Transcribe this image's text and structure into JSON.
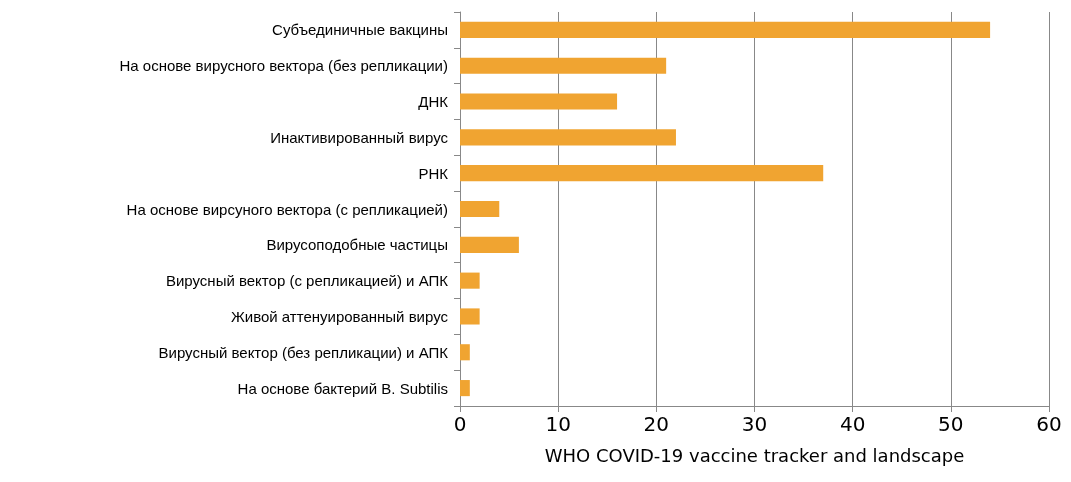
{
  "chart_data": {
    "type": "bar",
    "orientation": "horizontal",
    "xlabel": "WHO COVID-19 vaccine tracker and landscape",
    "categories": [
      "Субъединичные вакцины",
      "На основе вирусного вектора (без репликации)",
      "ДНК",
      "Инактивированный вирус",
      "РНК",
      "На основе вирсуного вектора (с репликацией)",
      "Вирусоподобные частицы",
      "Вирусный вектор (с репликацией) и АПК",
      "Живой аттенуированный вирус",
      "Вирусный вектор (без репликации) и АПК",
      "На основе бактерий B. Subtilis"
    ],
    "values": [
      54,
      21,
      16,
      22,
      37,
      4,
      6,
      2,
      2,
      1,
      1
    ],
    "color": "#f0a431",
    "xlim": [
      0,
      60
    ],
    "xticks": [
      0,
      10,
      20,
      30,
      40,
      50,
      60
    ],
    "grid": "x"
  }
}
